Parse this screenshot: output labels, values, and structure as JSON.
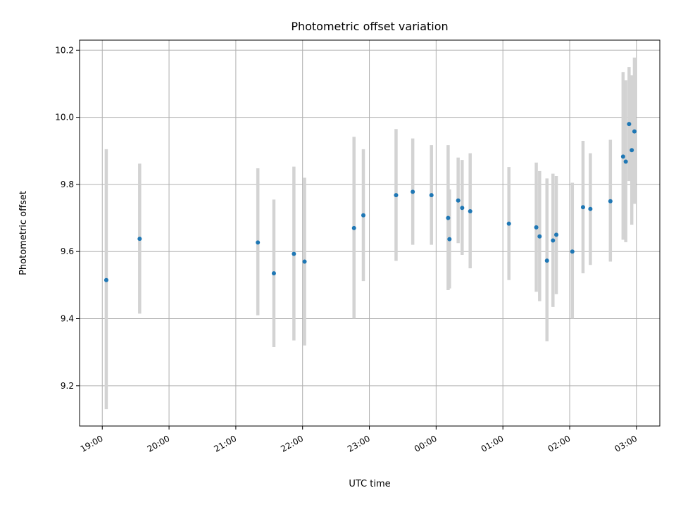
{
  "chart_data": {
    "type": "scatter",
    "title": "Photometric offset variation",
    "xlabel": "UTC time",
    "ylabel": "Photometric offset",
    "x_ticks": [
      "19:00",
      "20:00",
      "21:00",
      "22:00",
      "23:00",
      "00:00",
      "01:00",
      "02:00",
      "03:00"
    ],
    "x_tick_hours": [
      19,
      20,
      21,
      22,
      23,
      24,
      25,
      26,
      27
    ],
    "xlim_hours": [
      18.66,
      27.35
    ],
    "y_ticks": [
      "9.2",
      "9.4",
      "9.6",
      "9.8",
      "10.0",
      "10.2"
    ],
    "y_tick_values": [
      9.2,
      9.4,
      9.6,
      9.8,
      10.0,
      10.2
    ],
    "ylim": [
      9.08,
      10.23
    ],
    "grid": true,
    "colors": {
      "point": "#1f77b4",
      "errorbar": "#d3d3d3",
      "grid": "#b0b0b0"
    },
    "points": [
      {
        "t": 19.06,
        "y": 9.515,
        "lo": 9.13,
        "hi": 9.905
      },
      {
        "t": 19.56,
        "y": 9.638,
        "lo": 9.415,
        "hi": 9.862
      },
      {
        "t": 21.33,
        "y": 9.627,
        "lo": 9.41,
        "hi": 9.848
      },
      {
        "t": 21.57,
        "y": 9.535,
        "lo": 9.315,
        "hi": 9.755
      },
      {
        "t": 21.87,
        "y": 9.593,
        "lo": 9.335,
        "hi": 9.853
      },
      {
        "t": 22.03,
        "y": 9.57,
        "lo": 9.32,
        "hi": 9.82
      },
      {
        "t": 22.77,
        "y": 9.67,
        "lo": 9.4,
        "hi": 9.942
      },
      {
        "t": 22.91,
        "y": 9.708,
        "lo": 9.512,
        "hi": 9.905
      },
      {
        "t": 23.4,
        "y": 9.768,
        "lo": 9.572,
        "hi": 9.965
      },
      {
        "t": 23.65,
        "y": 9.778,
        "lo": 9.62,
        "hi": 9.937
      },
      {
        "t": 23.93,
        "y": 9.768,
        "lo": 9.62,
        "hi": 9.917
      },
      {
        "t": 24.18,
        "y": 9.7,
        "lo": 9.485,
        "hi": 9.917
      },
      {
        "t": 24.2,
        "y": 9.637,
        "lo": 9.49,
        "hi": 9.785
      },
      {
        "t": 24.33,
        "y": 9.752,
        "lo": 9.625,
        "hi": 9.88
      },
      {
        "t": 24.39,
        "y": 9.73,
        "lo": 9.59,
        "hi": 9.873
      },
      {
        "t": 24.51,
        "y": 9.72,
        "lo": 9.55,
        "hi": 9.893
      },
      {
        "t": 25.09,
        "y": 9.683,
        "lo": 9.515,
        "hi": 9.852
      },
      {
        "t": 25.5,
        "y": 9.672,
        "lo": 9.48,
        "hi": 9.865
      },
      {
        "t": 25.55,
        "y": 9.645,
        "lo": 9.452,
        "hi": 9.84
      },
      {
        "t": 25.66,
        "y": 9.573,
        "lo": 9.333,
        "hi": 9.818
      },
      {
        "t": 25.75,
        "y": 9.633,
        "lo": 9.435,
        "hi": 9.832
      },
      {
        "t": 25.8,
        "y": 9.65,
        "lo": 9.473,
        "hi": 9.825
      },
      {
        "t": 26.04,
        "y": 9.6,
        "lo": 9.4,
        "hi": 9.805
      },
      {
        "t": 26.2,
        "y": 9.732,
        "lo": 9.535,
        "hi": 9.93
      },
      {
        "t": 26.31,
        "y": 9.727,
        "lo": 9.56,
        "hi": 9.893
      },
      {
        "t": 26.61,
        "y": 9.75,
        "lo": 9.57,
        "hi": 9.933
      },
      {
        "t": 26.8,
        "y": 9.883,
        "lo": 9.635,
        "hi": 10.135
      },
      {
        "t": 26.84,
        "y": 9.868,
        "lo": 9.628,
        "hi": 10.11
      },
      {
        "t": 26.89,
        "y": 9.98,
        "lo": 9.81,
        "hi": 10.15
      },
      {
        "t": 26.93,
        "y": 9.902,
        "lo": 9.68,
        "hi": 10.125
      },
      {
        "t": 26.97,
        "y": 9.958,
        "lo": 9.742,
        "hi": 10.178
      }
    ]
  }
}
